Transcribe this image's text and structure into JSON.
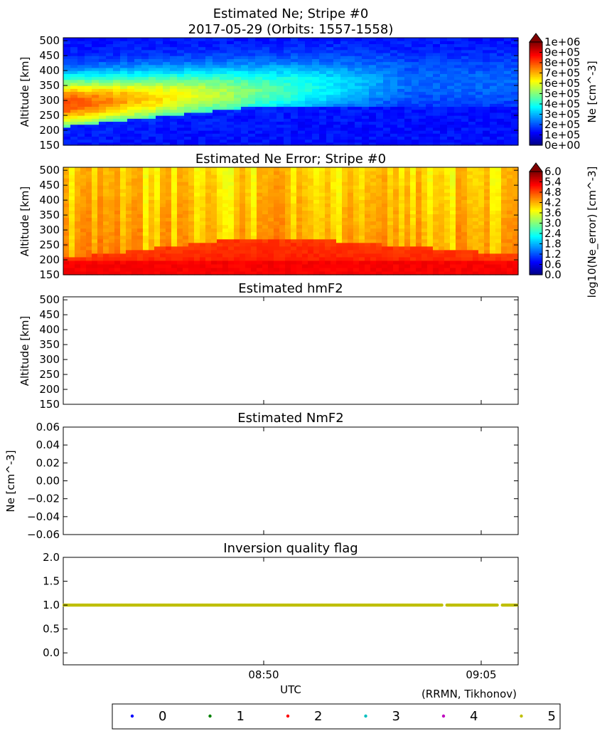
{
  "figure": {
    "footer_credit": "(RRMN, Tikhonov)"
  },
  "chart_data": [
    {
      "type": "heatmap",
      "title": "Estimated Ne; Stripe #0",
      "subtitle": "2017-05-29 (Orbits: 1557-1558)",
      "xlabel": "",
      "ylabel": "Altitude [km]",
      "y_ticks": [
        150,
        200,
        250,
        300,
        350,
        400,
        450,
        500
      ],
      "ylim": [
        150,
        510
      ],
      "colorbar": {
        "label": "Ne [cm^-3]",
        "colormap": "jet",
        "range": [
          0,
          1000000
        ],
        "tick_labels": [
          "0e+00",
          "1e+05",
          "2e+05",
          "3e+05",
          "4e+05",
          "5e+05",
          "6e+05",
          "7e+05",
          "8e+05",
          "9e+05",
          "1e+06"
        ],
        "extend": "max"
      },
      "description_of_field": {
        "peak_band_start_altitude": 290,
        "peak_band_end_altitude": 360,
        "peak_value_start": 750000,
        "peak_value_end": 100000
      }
    },
    {
      "type": "heatmap",
      "title": "Estimated Ne Error; Stripe #0",
      "xlabel": "",
      "ylabel": "Altitude [km]",
      "y_ticks": [
        150,
        200,
        250,
        300,
        350,
        400,
        450,
        500
      ],
      "ylim": [
        150,
        510
      ],
      "colorbar": {
        "label": "log10(Ne_error) [cm^-3]",
        "colormap": "jet",
        "range": [
          0,
          6
        ],
        "tick_labels": [
          "0.0",
          "0.6",
          "1.2",
          "1.8",
          "2.4",
          "3.0",
          "3.6",
          "4.2",
          "4.8",
          "5.4",
          "6.0"
        ],
        "extend": "max"
      }
    },
    {
      "type": "line",
      "title": "Estimated hmF2",
      "xlabel": "",
      "ylabel": "Altitude [km]",
      "y_ticks": [
        150,
        200,
        250,
        300,
        350,
        400,
        450,
        500
      ],
      "ylim": [
        150,
        510
      ],
      "series": []
    },
    {
      "type": "line",
      "title": "Estimated NmF2",
      "xlabel": "",
      "ylabel": "Ne [cm^-3]",
      "y_ticks": [
        "0.06",
        "0.04",
        "0.02",
        "0.00",
        "−0.02",
        "−0.04",
        "−0.06"
      ],
      "ylim": [
        -0.06,
        0.06
      ],
      "series": []
    },
    {
      "type": "scatter",
      "title": "Inversion quality flag",
      "xlabel": "UTC",
      "ylabel": "",
      "y_ticks": [
        "2.0",
        "1.5",
        "1.0",
        "0.5",
        "0.0"
      ],
      "ylim": [
        -0.25,
        2.0
      ],
      "x_ticks": [
        "08:50",
        "09:05"
      ],
      "x_range_minutes": [
        835.2,
        910.8
      ],
      "series": [
        {
          "name": "5",
          "y_value": 1.0,
          "color": "#bfbf00"
        }
      ]
    }
  ],
  "legend": {
    "entries": [
      {
        "label": "0",
        "color": "#0000ff"
      },
      {
        "label": "1",
        "color": "#008000"
      },
      {
        "label": "2",
        "color": "#ff0000"
      },
      {
        "label": "3",
        "color": "#00bfbf"
      },
      {
        "label": "4",
        "color": "#bf00bf"
      },
      {
        "label": "5",
        "color": "#bfbf00"
      }
    ]
  }
}
